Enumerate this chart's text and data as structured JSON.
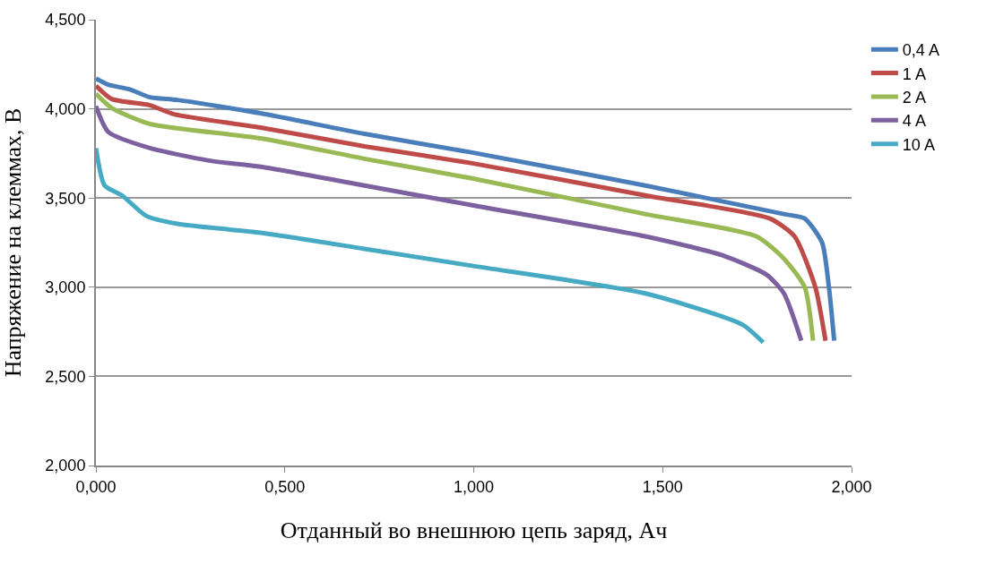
{
  "chart_data": {
    "type": "line",
    "xlabel": "Отданный во внешнюю цепь заряд, Ач",
    "ylabel": "Напряжение на клеммах, В",
    "xlim": [
      0,
      2
    ],
    "xticks": [
      {
        "value": 0,
        "label": "0,000"
      },
      {
        "value": 0.5,
        "label": "0,500"
      },
      {
        "value": 1,
        "label": "1,000"
      },
      {
        "value": 1.5,
        "label": "1,500"
      },
      {
        "value": 2,
        "label": "2,000"
      }
    ],
    "ylim": [
      2,
      4.5
    ],
    "yticks": [
      {
        "value": 2,
        "label": "2,000"
      },
      {
        "value": 2.5,
        "label": "2,500"
      },
      {
        "value": 3,
        "label": "3,000"
      },
      {
        "value": 3.5,
        "label": "3,500"
      },
      {
        "value": 4,
        "label": "4,000"
      },
      {
        "value": 4.5,
        "label": "4,500"
      }
    ],
    "grid": "y",
    "legend": "right",
    "marker": "none",
    "line_style": "solid",
    "series": [
      {
        "name": "0,4 A",
        "color": "#4a7ebb",
        "x": [
          0,
          0.033,
          0.088,
          0.143,
          0.216,
          0.436,
          0.711,
          0.996,
          1.454,
          1.821,
          1.876,
          1.922,
          1.94,
          1.954
        ],
        "values": [
          4.17,
          4.135,
          4.11,
          4.065,
          4.05,
          3.975,
          3.86,
          3.755,
          3.57,
          3.41,
          3.385,
          3.25,
          3.0,
          2.7
        ]
      },
      {
        "name": "1 A",
        "color": "#be4b48",
        "x": [
          0,
          0.042,
          0.143,
          0.207,
          0.436,
          0.711,
          0.996,
          1.454,
          1.784,
          1.849,
          1.904,
          1.931
        ],
        "values": [
          4.13,
          4.055,
          4.02,
          3.97,
          3.895,
          3.79,
          3.695,
          3.515,
          3.385,
          3.285,
          3.0,
          2.7
        ]
      },
      {
        "name": "2 A",
        "color": "#98b954",
        "x": [
          0,
          0.042,
          0.143,
          0.436,
          0.711,
          0.996,
          1.454,
          1.748,
          1.821,
          1.876,
          1.898
        ],
        "values": [
          4.085,
          4.005,
          3.915,
          3.835,
          3.72,
          3.61,
          3.41,
          3.285,
          3.16,
          3.0,
          2.7
        ]
      },
      {
        "name": "4 A",
        "color": "#7d60a0",
        "x": [
          0,
          0.033,
          0.143,
          0.299,
          0.436,
          0.711,
          0.996,
          1.454,
          1.656,
          1.775,
          1.821,
          1.867
        ],
        "values": [
          4.015,
          3.87,
          3.78,
          3.71,
          3.675,
          3.57,
          3.46,
          3.285,
          3.18,
          3.07,
          2.965,
          2.7
        ]
      },
      {
        "name": "10 A",
        "color": "#46aac5",
        "x": [
          0,
          0.023,
          0.069,
          0.133,
          0.216,
          0.436,
          0.711,
          0.996,
          1.454,
          1.711,
          1.766
        ],
        "values": [
          3.78,
          3.57,
          3.515,
          3.4,
          3.355,
          3.305,
          3.215,
          3.12,
          2.965,
          2.79,
          2.69
        ]
      }
    ]
  }
}
